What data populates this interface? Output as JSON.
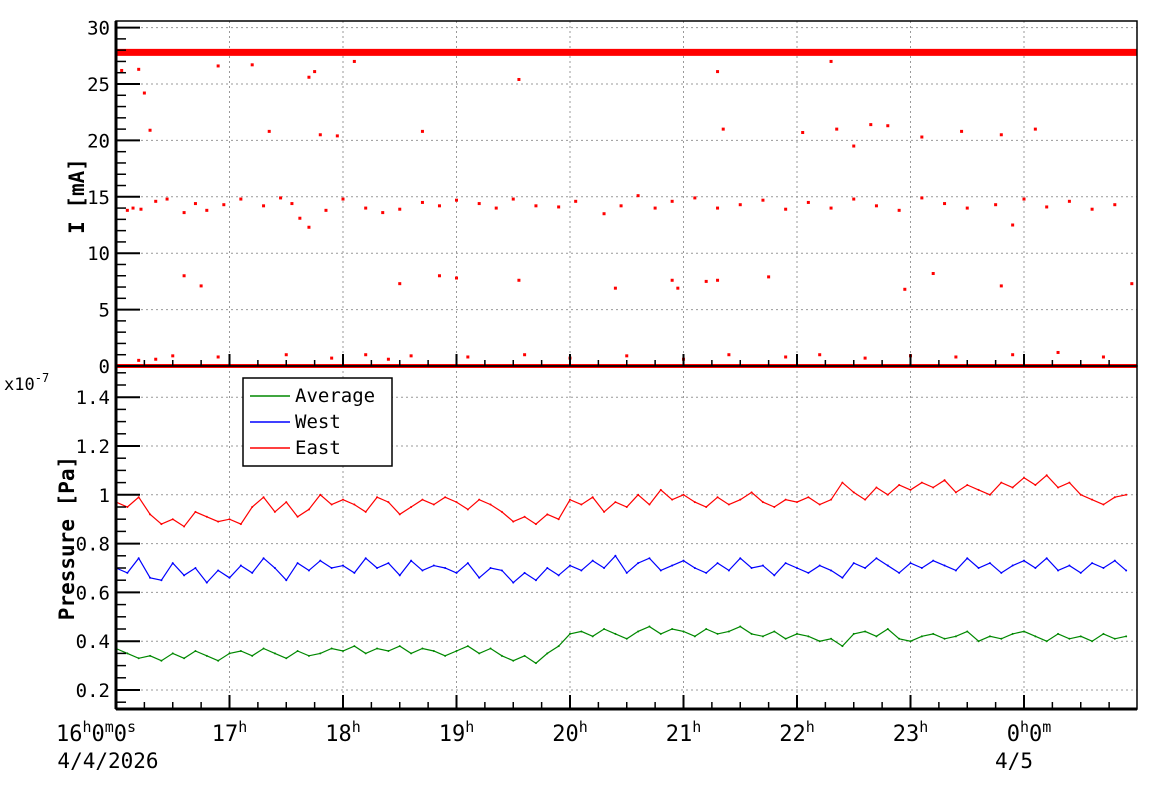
{
  "chart_data": [
    {
      "type": "scatter",
      "ylabel": "I [mA]",
      "ylim": [
        0,
        30
      ],
      "yticks": [
        "0",
        "5",
        "10",
        "15",
        "20",
        "25",
        "30"
      ],
      "xlim_hours": [
        16.0,
        25.0
      ],
      "grid": true,
      "color": "#ff0000",
      "baseline_value": 27.8,
      "zero_value": 0,
      "points": [
        [
          16.05,
          26.2
        ],
        [
          16.25,
          24.2
        ],
        [
          16.2,
          26.3
        ],
        [
          16.9,
          26.6
        ],
        [
          17.2,
          26.7
        ],
        [
          17.7,
          25.6
        ],
        [
          17.75,
          26.1
        ],
        [
          18.1,
          27.0
        ],
        [
          19.55,
          25.4
        ],
        [
          21.3,
          26.1
        ],
        [
          22.3,
          27.0
        ],
        [
          16.3,
          20.9
        ],
        [
          16.35,
          0.6
        ],
        [
          17.35,
          20.8
        ],
        [
          17.8,
          20.5
        ],
        [
          17.95,
          20.4
        ],
        [
          18.7,
          20.8
        ],
        [
          21.35,
          21.0
        ],
        [
          22.05,
          20.7
        ],
        [
          22.35,
          21.0
        ],
        [
          22.5,
          19.5
        ],
        [
          22.65,
          21.4
        ],
        [
          22.8,
          21.3
        ],
        [
          23.1,
          20.3
        ],
        [
          23.45,
          20.8
        ],
        [
          23.8,
          20.5
        ],
        [
          24.1,
          21.0
        ],
        [
          16.1,
          13.8
        ],
        [
          16.15,
          14.0
        ],
        [
          16.22,
          13.9
        ],
        [
          16.35,
          14.6
        ],
        [
          16.45,
          14.8
        ],
        [
          16.6,
          13.6
        ],
        [
          16.7,
          14.4
        ],
        [
          16.8,
          13.8
        ],
        [
          16.95,
          14.3
        ],
        [
          17.1,
          14.8
        ],
        [
          17.3,
          14.2
        ],
        [
          17.45,
          14.9
        ],
        [
          17.55,
          14.4
        ],
        [
          17.62,
          13.1
        ],
        [
          17.7,
          12.3
        ],
        [
          17.85,
          13.8
        ],
        [
          18.0,
          14.8
        ],
        [
          18.2,
          14.0
        ],
        [
          18.35,
          13.6
        ],
        [
          18.5,
          13.9
        ],
        [
          18.7,
          14.5
        ],
        [
          18.85,
          14.2
        ],
        [
          19.0,
          14.7
        ],
        [
          19.2,
          14.4
        ],
        [
          19.35,
          14.0
        ],
        [
          19.5,
          14.8
        ],
        [
          19.7,
          14.2
        ],
        [
          19.9,
          14.1
        ],
        [
          20.05,
          14.6
        ],
        [
          20.3,
          13.5
        ],
        [
          20.45,
          14.2
        ],
        [
          20.6,
          15.1
        ],
        [
          20.75,
          14.0
        ],
        [
          20.9,
          14.6
        ],
        [
          21.1,
          14.9
        ],
        [
          21.3,
          14.0
        ],
        [
          21.5,
          14.3
        ],
        [
          21.7,
          14.7
        ],
        [
          21.9,
          13.9
        ],
        [
          22.1,
          14.5
        ],
        [
          22.3,
          14.0
        ],
        [
          22.5,
          14.8
        ],
        [
          22.7,
          14.2
        ],
        [
          22.9,
          13.8
        ],
        [
          23.1,
          14.9
        ],
        [
          23.3,
          14.4
        ],
        [
          23.5,
          14.0
        ],
        [
          23.75,
          14.3
        ],
        [
          23.9,
          12.5
        ],
        [
          24.0,
          14.8
        ],
        [
          24.2,
          14.1
        ],
        [
          24.4,
          14.6
        ],
        [
          24.6,
          13.9
        ],
        [
          24.8,
          14.3
        ],
        [
          16.6,
          8.0
        ],
        [
          16.75,
          7.1
        ],
        [
          18.85,
          8.0
        ],
        [
          18.5,
          7.3
        ],
        [
          19.0,
          7.8
        ],
        [
          19.55,
          7.6
        ],
        [
          20.4,
          6.9
        ],
        [
          20.9,
          7.6
        ],
        [
          20.95,
          6.9
        ],
        [
          21.2,
          7.5
        ],
        [
          21.3,
          7.6
        ],
        [
          21.75,
          7.9
        ],
        [
          22.95,
          6.8
        ],
        [
          23.2,
          8.2
        ],
        [
          23.8,
          7.1
        ],
        [
          24.95,
          7.3
        ],
        [
          16.2,
          0.5
        ],
        [
          16.5,
          0.9
        ],
        [
          16.9,
          0.8
        ],
        [
          17.5,
          1.0
        ],
        [
          17.9,
          0.7
        ],
        [
          18.2,
          1.0
        ],
        [
          18.4,
          0.6
        ],
        [
          18.6,
          0.9
        ],
        [
          19.1,
          0.8
        ],
        [
          19.6,
          1.0
        ],
        [
          20.0,
          0.7
        ],
        [
          20.5,
          0.9
        ],
        [
          21.0,
          0.6
        ],
        [
          21.4,
          1.0
        ],
        [
          21.9,
          0.8
        ],
        [
          22.2,
          1.0
        ],
        [
          22.6,
          0.7
        ],
        [
          23.0,
          0.9
        ],
        [
          23.4,
          0.8
        ],
        [
          23.9,
          1.0
        ],
        [
          24.3,
          1.2
        ],
        [
          24.7,
          0.8
        ]
      ]
    },
    {
      "type": "line",
      "ylabel": "Pressure [Pa]",
      "yscale_label": "x10",
      "yscale_exponent": "-7",
      "ylim": [
        0.12,
        1.53
      ],
      "yticks": [
        "0.2",
        "0.4",
        "0.6",
        "0.8",
        "1",
        "1.2",
        "1.4"
      ],
      "xlim_hours": [
        16.0,
        25.0
      ],
      "grid": true,
      "legend_position": "top-left",
      "x_hours": [
        16.0,
        16.1,
        16.2,
        16.3,
        16.4,
        16.5,
        16.6,
        16.7,
        16.8,
        16.9,
        17.0,
        17.1,
        17.2,
        17.3,
        17.4,
        17.5,
        17.6,
        17.7,
        17.8,
        17.9,
        18.0,
        18.1,
        18.2,
        18.3,
        18.4,
        18.5,
        18.6,
        18.7,
        18.8,
        18.9,
        19.0,
        19.1,
        19.2,
        19.3,
        19.4,
        19.5,
        19.6,
        19.7,
        19.8,
        19.9,
        20.0,
        20.1,
        20.2,
        20.3,
        20.4,
        20.5,
        20.6,
        20.7,
        20.8,
        20.9,
        21.0,
        21.1,
        21.2,
        21.3,
        21.4,
        21.5,
        21.6,
        21.7,
        21.8,
        21.9,
        22.0,
        22.1,
        22.2,
        22.3,
        22.4,
        22.5,
        22.6,
        22.7,
        22.8,
        22.9,
        23.0,
        23.1,
        23.2,
        23.3,
        23.4,
        23.5,
        23.6,
        23.7,
        23.8,
        23.9,
        24.0,
        24.1,
        24.2,
        24.3,
        24.4,
        24.5,
        24.6,
        24.7,
        24.8,
        24.9
      ],
      "series": [
        {
          "name": "Average",
          "color": "#008800",
          "values": [
            0.37,
            0.35,
            0.33,
            0.34,
            0.32,
            0.35,
            0.33,
            0.36,
            0.34,
            0.32,
            0.35,
            0.36,
            0.34,
            0.37,
            0.35,
            0.33,
            0.36,
            0.34,
            0.35,
            0.37,
            0.36,
            0.38,
            0.35,
            0.37,
            0.36,
            0.38,
            0.35,
            0.37,
            0.36,
            0.34,
            0.36,
            0.38,
            0.35,
            0.37,
            0.34,
            0.32,
            0.34,
            0.31,
            0.35,
            0.38,
            0.43,
            0.44,
            0.42,
            0.45,
            0.43,
            0.41,
            0.44,
            0.46,
            0.43,
            0.45,
            0.44,
            0.42,
            0.45,
            0.43,
            0.44,
            0.46,
            0.43,
            0.42,
            0.44,
            0.41,
            0.43,
            0.42,
            0.4,
            0.41,
            0.38,
            0.43,
            0.44,
            0.42,
            0.45,
            0.41,
            0.4,
            0.42,
            0.43,
            0.41,
            0.42,
            0.44,
            0.4,
            0.42,
            0.41,
            0.43,
            0.44,
            0.42,
            0.4,
            0.43,
            0.41,
            0.42,
            0.4,
            0.43,
            0.41,
            0.42
          ]
        },
        {
          "name": "West",
          "color": "#0000ff",
          "values": [
            0.7,
            0.68,
            0.74,
            0.66,
            0.65,
            0.72,
            0.67,
            0.7,
            0.64,
            0.69,
            0.66,
            0.71,
            0.68,
            0.74,
            0.7,
            0.65,
            0.72,
            0.69,
            0.73,
            0.7,
            0.71,
            0.68,
            0.74,
            0.7,
            0.72,
            0.67,
            0.73,
            0.69,
            0.71,
            0.7,
            0.68,
            0.72,
            0.66,
            0.7,
            0.69,
            0.64,
            0.68,
            0.65,
            0.7,
            0.67,
            0.71,
            0.69,
            0.73,
            0.7,
            0.75,
            0.68,
            0.72,
            0.74,
            0.69,
            0.71,
            0.73,
            0.7,
            0.68,
            0.72,
            0.69,
            0.74,
            0.7,
            0.71,
            0.67,
            0.72,
            0.7,
            0.68,
            0.71,
            0.69,
            0.66,
            0.72,
            0.7,
            0.74,
            0.71,
            0.68,
            0.72,
            0.7,
            0.73,
            0.71,
            0.69,
            0.74,
            0.7,
            0.72,
            0.68,
            0.71,
            0.73,
            0.7,
            0.74,
            0.69,
            0.71,
            0.68,
            0.72,
            0.7,
            0.73,
            0.69
          ]
        },
        {
          "name": "East",
          "color": "#ff0000",
          "values": [
            0.97,
            0.95,
            0.99,
            0.92,
            0.88,
            0.9,
            0.87,
            0.93,
            0.91,
            0.89,
            0.9,
            0.88,
            0.95,
            0.99,
            0.93,
            0.97,
            0.91,
            0.94,
            1.0,
            0.96,
            0.98,
            0.96,
            0.93,
            0.99,
            0.97,
            0.92,
            0.95,
            0.98,
            0.96,
            0.99,
            0.97,
            0.94,
            0.98,
            0.96,
            0.93,
            0.89,
            0.91,
            0.88,
            0.92,
            0.9,
            0.98,
            0.96,
            0.99,
            0.93,
            0.97,
            0.95,
            1.0,
            0.96,
            1.02,
            0.98,
            1.0,
            0.97,
            0.95,
            0.99,
            0.96,
            0.98,
            1.01,
            0.97,
            0.95,
            0.98,
            0.97,
            0.99,
            0.96,
            0.98,
            1.05,
            1.01,
            0.98,
            1.03,
            1.0,
            1.04,
            1.02,
            1.05,
            1.03,
            1.06,
            1.01,
            1.04,
            1.02,
            1.0,
            1.05,
            1.03,
            1.07,
            1.04,
            1.08,
            1.03,
            1.05,
            1.0,
            0.98,
            0.96,
            0.99,
            1.0
          ]
        }
      ]
    }
  ],
  "xaxis": {
    "tick_hours": [
      16,
      17,
      18,
      19,
      20,
      21,
      22,
      23,
      24
    ],
    "tick_labels": [
      {
        "base": "16",
        "sup1": "h",
        "mid1": "0",
        "sup2": "m",
        "mid2": "0",
        "sup3": "s"
      },
      {
        "base": "17",
        "sup1": "h"
      },
      {
        "base": "18",
        "sup1": "h"
      },
      {
        "base": "19",
        "sup1": "h"
      },
      {
        "base": "20",
        "sup1": "h"
      },
      {
        "base": "21",
        "sup1": "h"
      },
      {
        "base": "22",
        "sup1": "h"
      },
      {
        "base": "23",
        "sup1": "h"
      },
      {
        "base": "0",
        "sup1": "h",
        "mid1": "0",
        "sup2": "m"
      }
    ],
    "date_labels": [
      {
        "hour": 16,
        "text": "4/4/2026"
      },
      {
        "hour": 24,
        "text": "4/5"
      }
    ]
  }
}
